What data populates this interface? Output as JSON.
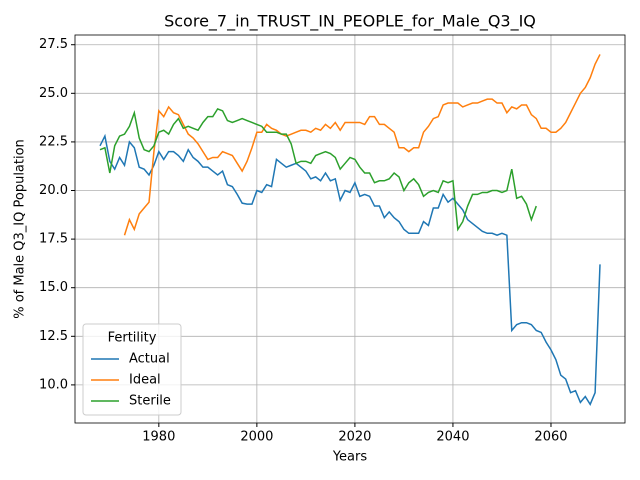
{
  "chart_data": {
    "type": "line",
    "title": "Score_7_in_TRUST_IN_PEOPLE_for_Male_Q3_IQ",
    "xlabel": "Years",
    "ylabel": "% of Male Q3_IQ Population",
    "x": [
      1968,
      1969,
      1970,
      1971,
      1972,
      1973,
      1974,
      1975,
      1976,
      1977,
      1978,
      1979,
      1980,
      1981,
      1982,
      1983,
      1984,
      1985,
      1986,
      1987,
      1988,
      1989,
      1990,
      1991,
      1992,
      1993,
      1994,
      1995,
      1996,
      1997,
      1998,
      1999,
      2000,
      2001,
      2002,
      2003,
      2004,
      2005,
      2006,
      2007,
      2008,
      2009,
      2010,
      2011,
      2012,
      2013,
      2014,
      2015,
      2016,
      2017,
      2018,
      2019,
      2020,
      2021,
      2022,
      2023,
      2024,
      2025,
      2026,
      2027,
      2028,
      2029,
      2030,
      2031,
      2032,
      2033,
      2034,
      2035,
      2036,
      2037,
      2038,
      2039,
      2040,
      2041,
      2042,
      2043,
      2044,
      2045,
      2046,
      2047,
      2048,
      2049,
      2050,
      2051,
      2052,
      2053,
      2054,
      2055,
      2056,
      2057,
      2058,
      2059,
      2060,
      2061,
      2062,
      2063,
      2064,
      2065,
      2066,
      2067,
      2068,
      2069,
      2070
    ],
    "series": [
      {
        "name": "Actual",
        "color": "#1f77b4",
        "values": [
          22.3,
          22.8,
          21.5,
          21.1,
          21.7,
          21.3,
          22.5,
          22.2,
          21.2,
          21.1,
          20.8,
          21.3,
          22.0,
          21.6,
          22.0,
          22.0,
          21.8,
          21.5,
          22.1,
          21.7,
          21.5,
          21.2,
          21.2,
          21.0,
          20.8,
          21.0,
          20.3,
          20.2,
          19.8,
          19.35,
          19.3,
          19.3,
          20.0,
          19.9,
          20.3,
          20.2,
          21.6,
          21.4,
          21.2,
          21.3,
          21.4,
          21.2,
          21.0,
          20.6,
          20.7,
          20.5,
          20.9,
          20.5,
          20.6,
          19.5,
          20.0,
          19.9,
          20.4,
          19.7,
          19.8,
          19.7,
          19.2,
          19.2,
          18.6,
          18.9,
          18.6,
          18.4,
          18.0,
          17.8,
          17.8,
          17.8,
          18.4,
          18.2,
          19.1,
          19.1,
          19.8,
          19.4,
          19.6,
          19.3,
          19.0,
          18.5,
          18.3,
          18.1,
          17.9,
          17.8,
          17.8,
          17.7,
          17.8,
          17.7,
          12.8,
          13.1,
          13.2,
          13.2,
          13.1,
          12.8,
          12.7,
          12.2,
          11.8,
          11.3,
          10.5,
          10.3,
          9.6,
          9.7,
          9.1,
          9.4,
          9.0,
          9.6,
          16.2
        ]
      },
      {
        "name": "Ideal",
        "color": "#ff7f0e",
        "values": [
          null,
          null,
          null,
          null,
          null,
          17.7,
          18.5,
          18.0,
          18.8,
          19.1,
          19.4,
          22.0,
          24.1,
          23.8,
          24.3,
          24.0,
          23.9,
          23.4,
          22.9,
          22.7,
          22.4,
          22.0,
          21.6,
          21.7,
          21.7,
          22.0,
          21.9,
          21.8,
          21.4,
          21.0,
          21.5,
          22.2,
          23.0,
          23.0,
          23.4,
          23.2,
          23.1,
          22.9,
          22.8,
          22.9,
          23.0,
          23.1,
          23.1,
          23.0,
          23.2,
          23.1,
          23.4,
          23.2,
          23.5,
          23.1,
          23.5,
          23.5,
          23.5,
          23.5,
          23.4,
          23.8,
          23.8,
          23.4,
          23.4,
          23.2,
          23.0,
          22.2,
          22.2,
          22.0,
          22.2,
          22.2,
          23.0,
          23.3,
          23.7,
          23.8,
          24.4,
          24.5,
          24.5,
          24.5,
          24.3,
          24.4,
          24.5,
          24.5,
          24.6,
          24.7,
          24.7,
          24.5,
          24.5,
          24.0,
          24.3,
          24.2,
          24.4,
          24.4,
          23.9,
          23.7,
          23.2,
          23.2,
          23.0,
          23.0,
          23.2,
          23.5,
          24.0,
          24.5,
          25.0,
          25.3,
          25.8,
          26.5,
          27.0
        ]
      },
      {
        "name": "Sterile",
        "color": "#2ca02c",
        "values": [
          22.1,
          22.2,
          20.9,
          22.3,
          22.8,
          22.9,
          23.3,
          24.0,
          22.7,
          22.1,
          22.0,
          22.3,
          23.0,
          23.1,
          22.9,
          23.4,
          23.7,
          23.2,
          23.3,
          23.2,
          23.1,
          23.5,
          23.8,
          23.8,
          24.2,
          24.1,
          23.6,
          23.5,
          23.6,
          23.7,
          23.6,
          23.5,
          23.4,
          23.3,
          23.0,
          23.0,
          23.0,
          22.9,
          22.9,
          22.4,
          21.4,
          21.5,
          21.5,
          21.4,
          21.8,
          21.9,
          22.0,
          21.9,
          21.7,
          21.1,
          21.4,
          21.7,
          21.6,
          21.2,
          20.9,
          20.9,
          20.4,
          20.5,
          20.5,
          20.6,
          20.9,
          20.7,
          20.0,
          20.4,
          20.6,
          20.3,
          19.7,
          19.9,
          20.0,
          19.9,
          20.5,
          20.4,
          20.5,
          18.0,
          18.4,
          19.2,
          19.8,
          19.8,
          19.9,
          19.9,
          20.0,
          20.0,
          19.9,
          20.0,
          21.1,
          19.6,
          19.7,
          19.3,
          18.5,
          19.2,
          null,
          null,
          null,
          null,
          null,
          null,
          null,
          null,
          null,
          null,
          null,
          null,
          null
        ]
      }
    ],
    "xlim": [
      1962.9,
      2075.1
    ],
    "ylim": [
      8.04,
      28.0
    ],
    "xticks": [
      1980,
      2000,
      2020,
      2040,
      2060
    ],
    "yticks": [
      {
        "value": 10,
        "label": "10.0"
      },
      {
        "value": 12.5,
        "label": "12.5"
      },
      {
        "value": 15,
        "label": "15.0"
      },
      {
        "value": 17.5,
        "label": "17.5"
      },
      {
        "value": 20,
        "label": "20.0"
      },
      {
        "value": 22.5,
        "label": "22.5"
      },
      {
        "value": 25,
        "label": "25.0"
      },
      {
        "value": 27.5,
        "label": "27.5"
      }
    ],
    "grid": true,
    "legend_title": "Fertility",
    "legend_loc": "lower left"
  }
}
